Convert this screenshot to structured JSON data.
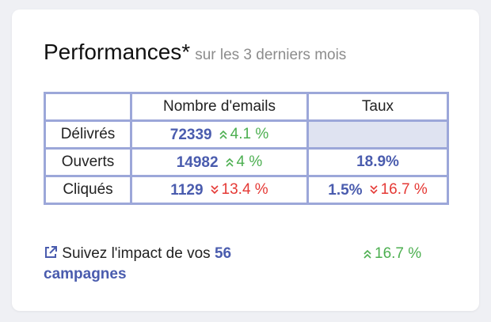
{
  "header": {
    "title": "Performances*",
    "subtitle": "sur les 3 derniers mois"
  },
  "table": {
    "columns": [
      "Nombre d'emails",
      "Taux"
    ],
    "rows": [
      {
        "label": "Délivrés",
        "count": "72339",
        "count_change": {
          "text": "4.1 %",
          "trend": "up"
        }
      },
      {
        "label": "Ouverts",
        "count": "14982",
        "count_change": {
          "text": "4 %",
          "trend": "up"
        },
        "rate": "18.9%"
      },
      {
        "label": "Cliqués",
        "count": "1129",
        "count_change": {
          "text": "13.4 %",
          "trend": "down"
        },
        "rate": "1.5%",
        "rate_change": {
          "text": "16.7 %",
          "trend": "down"
        }
      }
    ]
  },
  "footer": {
    "link_text": "Suivez l'impact de vos",
    "link_count": "56",
    "link_word": "campagnes",
    "change": {
      "text": "16.7 %",
      "trend": "up"
    }
  }
}
